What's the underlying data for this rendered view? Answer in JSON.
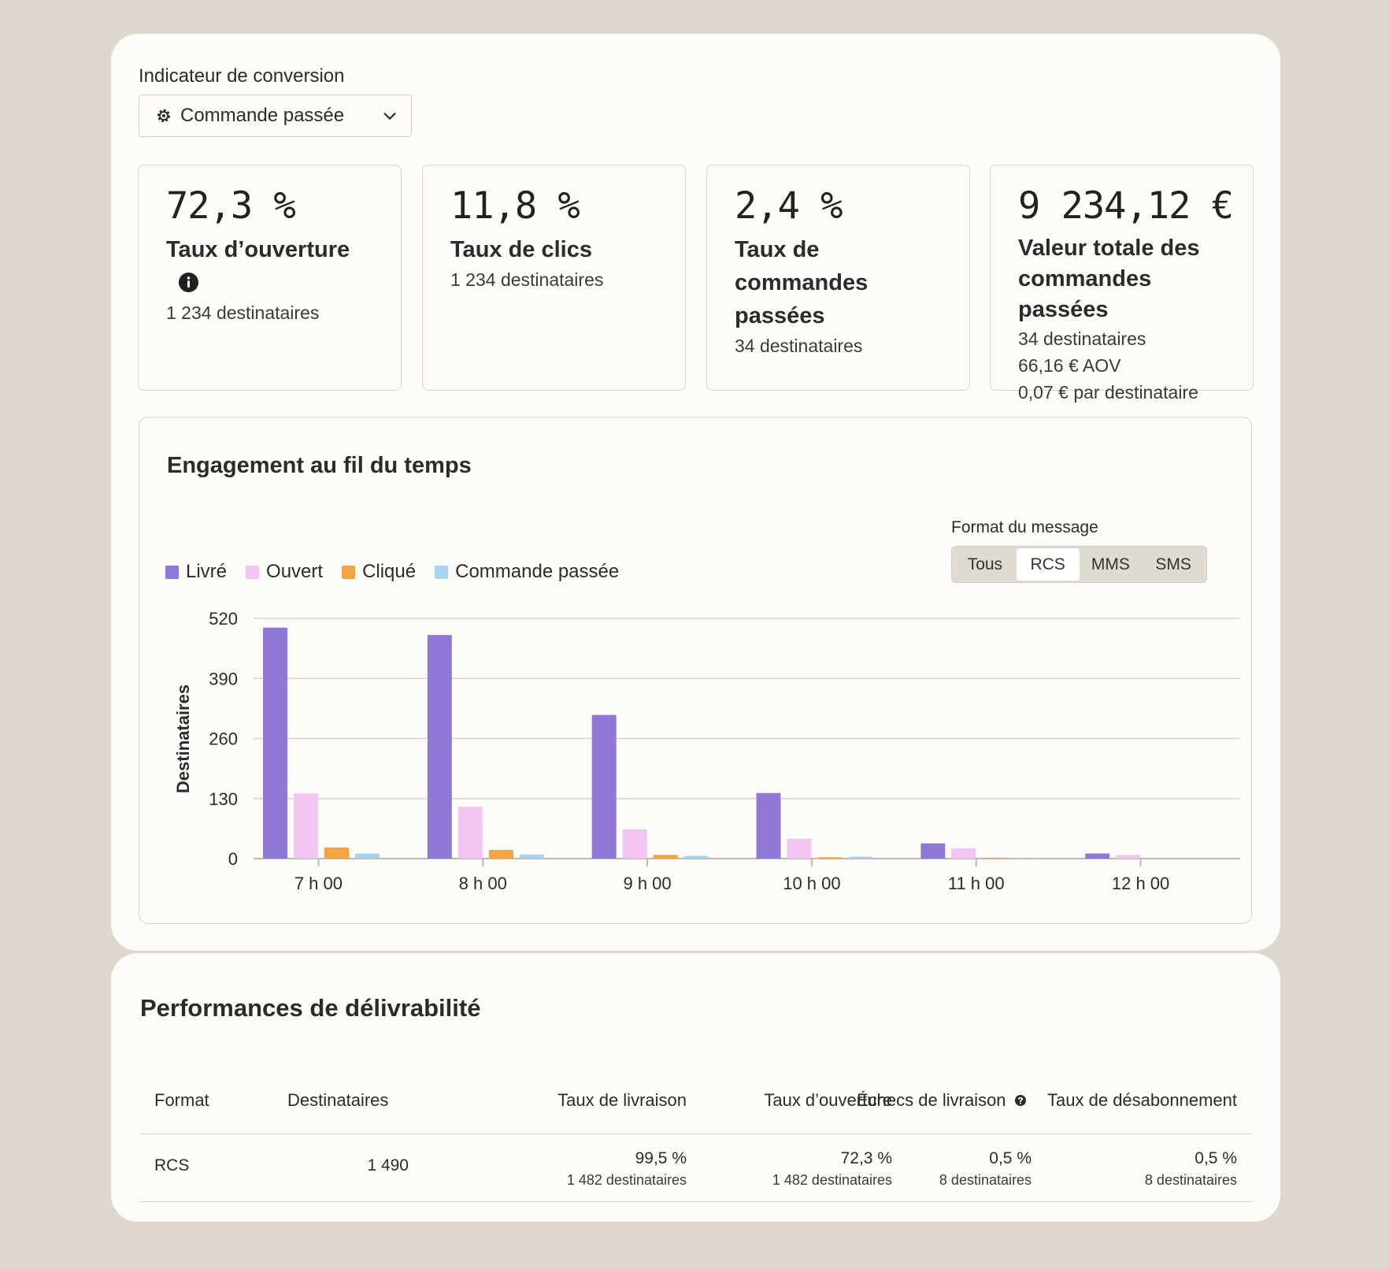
{
  "conversion": {
    "label": "Indicateur de conversion",
    "selected": "Commande passée"
  },
  "metrics": [
    {
      "value": "72,3 %",
      "title": "Taux d’ouverture",
      "lines": [
        "1 234 destinataires"
      ]
    },
    {
      "value": "11,8 %",
      "title": "Taux de clics",
      "lines": [
        "1 234 destinataires"
      ]
    },
    {
      "value": "2,4 %",
      "title_lines": [
        "Taux de commandes",
        "passées"
      ],
      "lines": [
        "34 destinataires"
      ]
    },
    {
      "value": "9 234,12 €",
      "title_lines": [
        "Valeur totale des",
        "commandes passées"
      ],
      "lines": [
        "34 destinataires",
        "66,16 € AOV",
        "0,07 € par destinataire"
      ]
    }
  ],
  "engagement": {
    "title": "Engagement au fil du temps",
    "format_label": "Format du message",
    "format_options": [
      "Tous",
      "RCS",
      "MMS",
      "SMS"
    ],
    "format_selected": "RCS"
  },
  "chart_data": {
    "type": "bar",
    "categories": [
      "7 h 00",
      "8 h 00",
      "9 h 00",
      "10 h 00",
      "11 h 00",
      "12 h 00"
    ],
    "series": [
      {
        "name": "Livré",
        "color": "#9079d6",
        "values": [
          500,
          484,
          311,
          142,
          33,
          11
        ]
      },
      {
        "name": "Ouvert",
        "color": "#f2c4f0",
        "values": [
          141,
          112,
          63,
          43,
          22,
          8
        ]
      },
      {
        "name": "Cliqué",
        "color": "#f5a442",
        "values": [
          24,
          19,
          8,
          3,
          2,
          0
        ]
      },
      {
        "name": "Commande passée",
        "color": "#a6d3ee",
        "values": [
          11,
          9,
          6,
          4,
          1,
          0
        ]
      }
    ],
    "ylabel": "Destinataires",
    "yticks": [
      0,
      130,
      260,
      390,
      520
    ],
    "ylim": [
      0,
      520
    ],
    "grid": true
  },
  "performance": {
    "title": "Performances de délivrabilité",
    "headers": [
      "Format",
      "Destinataires",
      "Taux de livraison",
      "Taux d’ouverture",
      "Échecs de livraison",
      "Taux de désabonnement"
    ],
    "row": {
      "format": "RCS",
      "recipients": "1 490",
      "delivery_rate": "99,5 %",
      "delivery_sub": "1 482 destinataires",
      "open_rate": "72,3 %",
      "open_sub": "1 482 destinataires",
      "failures": "0,5 %",
      "failures_sub": "8 destinataires",
      "unsub": "0,5 %",
      "unsub_sub": "8 destinataires"
    }
  }
}
